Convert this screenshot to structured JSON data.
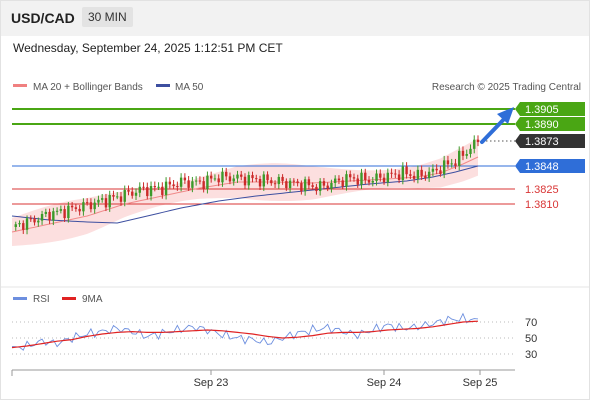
{
  "header": {
    "pair": "USD/CAD",
    "timeframe": "30 MIN",
    "timestamp": "Wednesday, September 24, 2025 1:12:51 PM CET"
  },
  "credit": "Research © 2025 Trading Central",
  "colors": {
    "green": "#4aa614",
    "blue": "#2f6ed8",
    "red": "#d93636",
    "dark": "#333333",
    "candle_up": "#3c9a2a",
    "candle_down": "#cc2a2a",
    "ma50": "#3d4fa0",
    "bollinger_fill": "#fbd9d9",
    "rsi": "#6d8fdf",
    "rsi_ma": "#e02222"
  },
  "arrow": {
    "direction": "up",
    "color": "#2f6ed8"
  },
  "chart_data": [
    {
      "type": "candlestick",
      "legend": [
        {
          "label": "MA 20 + Bollinger Bands",
          "color": "#f08080"
        },
        {
          "label": "MA 50",
          "color": "#3d4fa0"
        }
      ],
      "ylim": [
        1.3732,
        1.3918
      ],
      "levels": [
        {
          "value": 1.3905,
          "label": "1.3905",
          "kind": "resistance",
          "color": "#4aa614"
        },
        {
          "value": 1.389,
          "label": "1.3890",
          "kind": "resistance",
          "color": "#4aa614"
        },
        {
          "value": 1.3873,
          "label": "1.3873",
          "kind": "last-price",
          "color": "#333333"
        },
        {
          "value": 1.3848,
          "label": "1.3848",
          "kind": "pivot",
          "color": "#2f6ed8"
        },
        {
          "value": 1.3825,
          "label": "1.3825",
          "kind": "support",
          "color": "#d93636"
        },
        {
          "value": 1.381,
          "label": "1.3810",
          "kind": "support",
          "color": "#d93636"
        }
      ],
      "x_ticks": [
        "Sep 23",
        "Sep 24",
        "Sep 25"
      ],
      "close_path": [
        [
          0,
          1.3787
        ],
        [
          5,
          1.3793
        ],
        [
          10,
          1.38
        ],
        [
          15,
          1.3804
        ],
        [
          22,
          1.3811
        ],
        [
          28,
          1.3817
        ],
        [
          34,
          1.3824
        ],
        [
          40,
          1.3826
        ],
        [
          45,
          1.3832
        ],
        [
          50,
          1.3831
        ],
        [
          55,
          1.3837
        ],
        [
          60,
          1.3836
        ],
        [
          66,
          1.3834
        ],
        [
          72,
          1.3832
        ],
        [
          78,
          1.3829
        ],
        [
          82,
          1.3827
        ],
        [
          86,
          1.3832
        ],
        [
          90,
          1.3836
        ],
        [
          95,
          1.3834
        ],
        [
          100,
          1.3838
        ],
        [
          104,
          1.3841
        ],
        [
          108,
          1.3838
        ],
        [
          112,
          1.3842
        ],
        [
          115,
          1.3848
        ],
        [
          118,
          1.3853
        ],
        [
          122,
          1.3866
        ],
        [
          124,
          1.3873
        ]
      ],
      "ma50_path": [
        [
          0,
          1.3798
        ],
        [
          10,
          1.3794
        ],
        [
          20,
          1.3792
        ],
        [
          28,
          1.3791
        ],
        [
          36,
          1.3798
        ],
        [
          45,
          1.3806
        ],
        [
          55,
          1.3813
        ],
        [
          65,
          1.3818
        ],
        [
          75,
          1.3822
        ],
        [
          85,
          1.3826
        ],
        [
          95,
          1.383
        ],
        [
          105,
          1.3833
        ],
        [
          112,
          1.3837
        ],
        [
          118,
          1.3842
        ],
        [
          124,
          1.3848
        ]
      ],
      "ma20_path": [
        [
          0,
          1.3782
        ],
        [
          10,
          1.379
        ],
        [
          20,
          1.3798
        ],
        [
          30,
          1.381
        ],
        [
          40,
          1.3818
        ],
        [
          50,
          1.3826
        ],
        [
          60,
          1.3832
        ],
        [
          70,
          1.3832
        ],
        [
          80,
          1.3831
        ],
        [
          90,
          1.3833
        ],
        [
          100,
          1.3835
        ],
        [
          108,
          1.3837
        ],
        [
          114,
          1.3841
        ],
        [
          120,
          1.385
        ],
        [
          124,
          1.3857
        ]
      ],
      "band_half_width": 0.0014
    },
    {
      "type": "line",
      "legend": [
        {
          "label": "RSI",
          "color": "#6d8fdf"
        },
        {
          "label": "9MA",
          "color": "#e02222"
        }
      ],
      "ylim": [
        20,
        80
      ],
      "y_ticks": [
        70,
        50,
        30
      ],
      "series": [
        {
          "name": "RSI",
          "values": [
            37,
            40,
            46,
            43,
            50,
            55,
            58,
            62,
            58,
            52,
            56,
            60,
            64,
            60,
            54,
            50,
            48,
            44,
            50,
            56,
            60,
            63,
            58,
            54,
            60,
            66,
            62,
            64,
            68,
            73,
            74,
            72
          ]
        },
        {
          "name": "9MA",
          "values": [
            38,
            40,
            43,
            46,
            48,
            52,
            55,
            57,
            58,
            57,
            57,
            58,
            59,
            60,
            59,
            57,
            55,
            52,
            50,
            51,
            53,
            56,
            57,
            57,
            58,
            60,
            61,
            62,
            64,
            67,
            70,
            71
          ]
        }
      ]
    }
  ]
}
